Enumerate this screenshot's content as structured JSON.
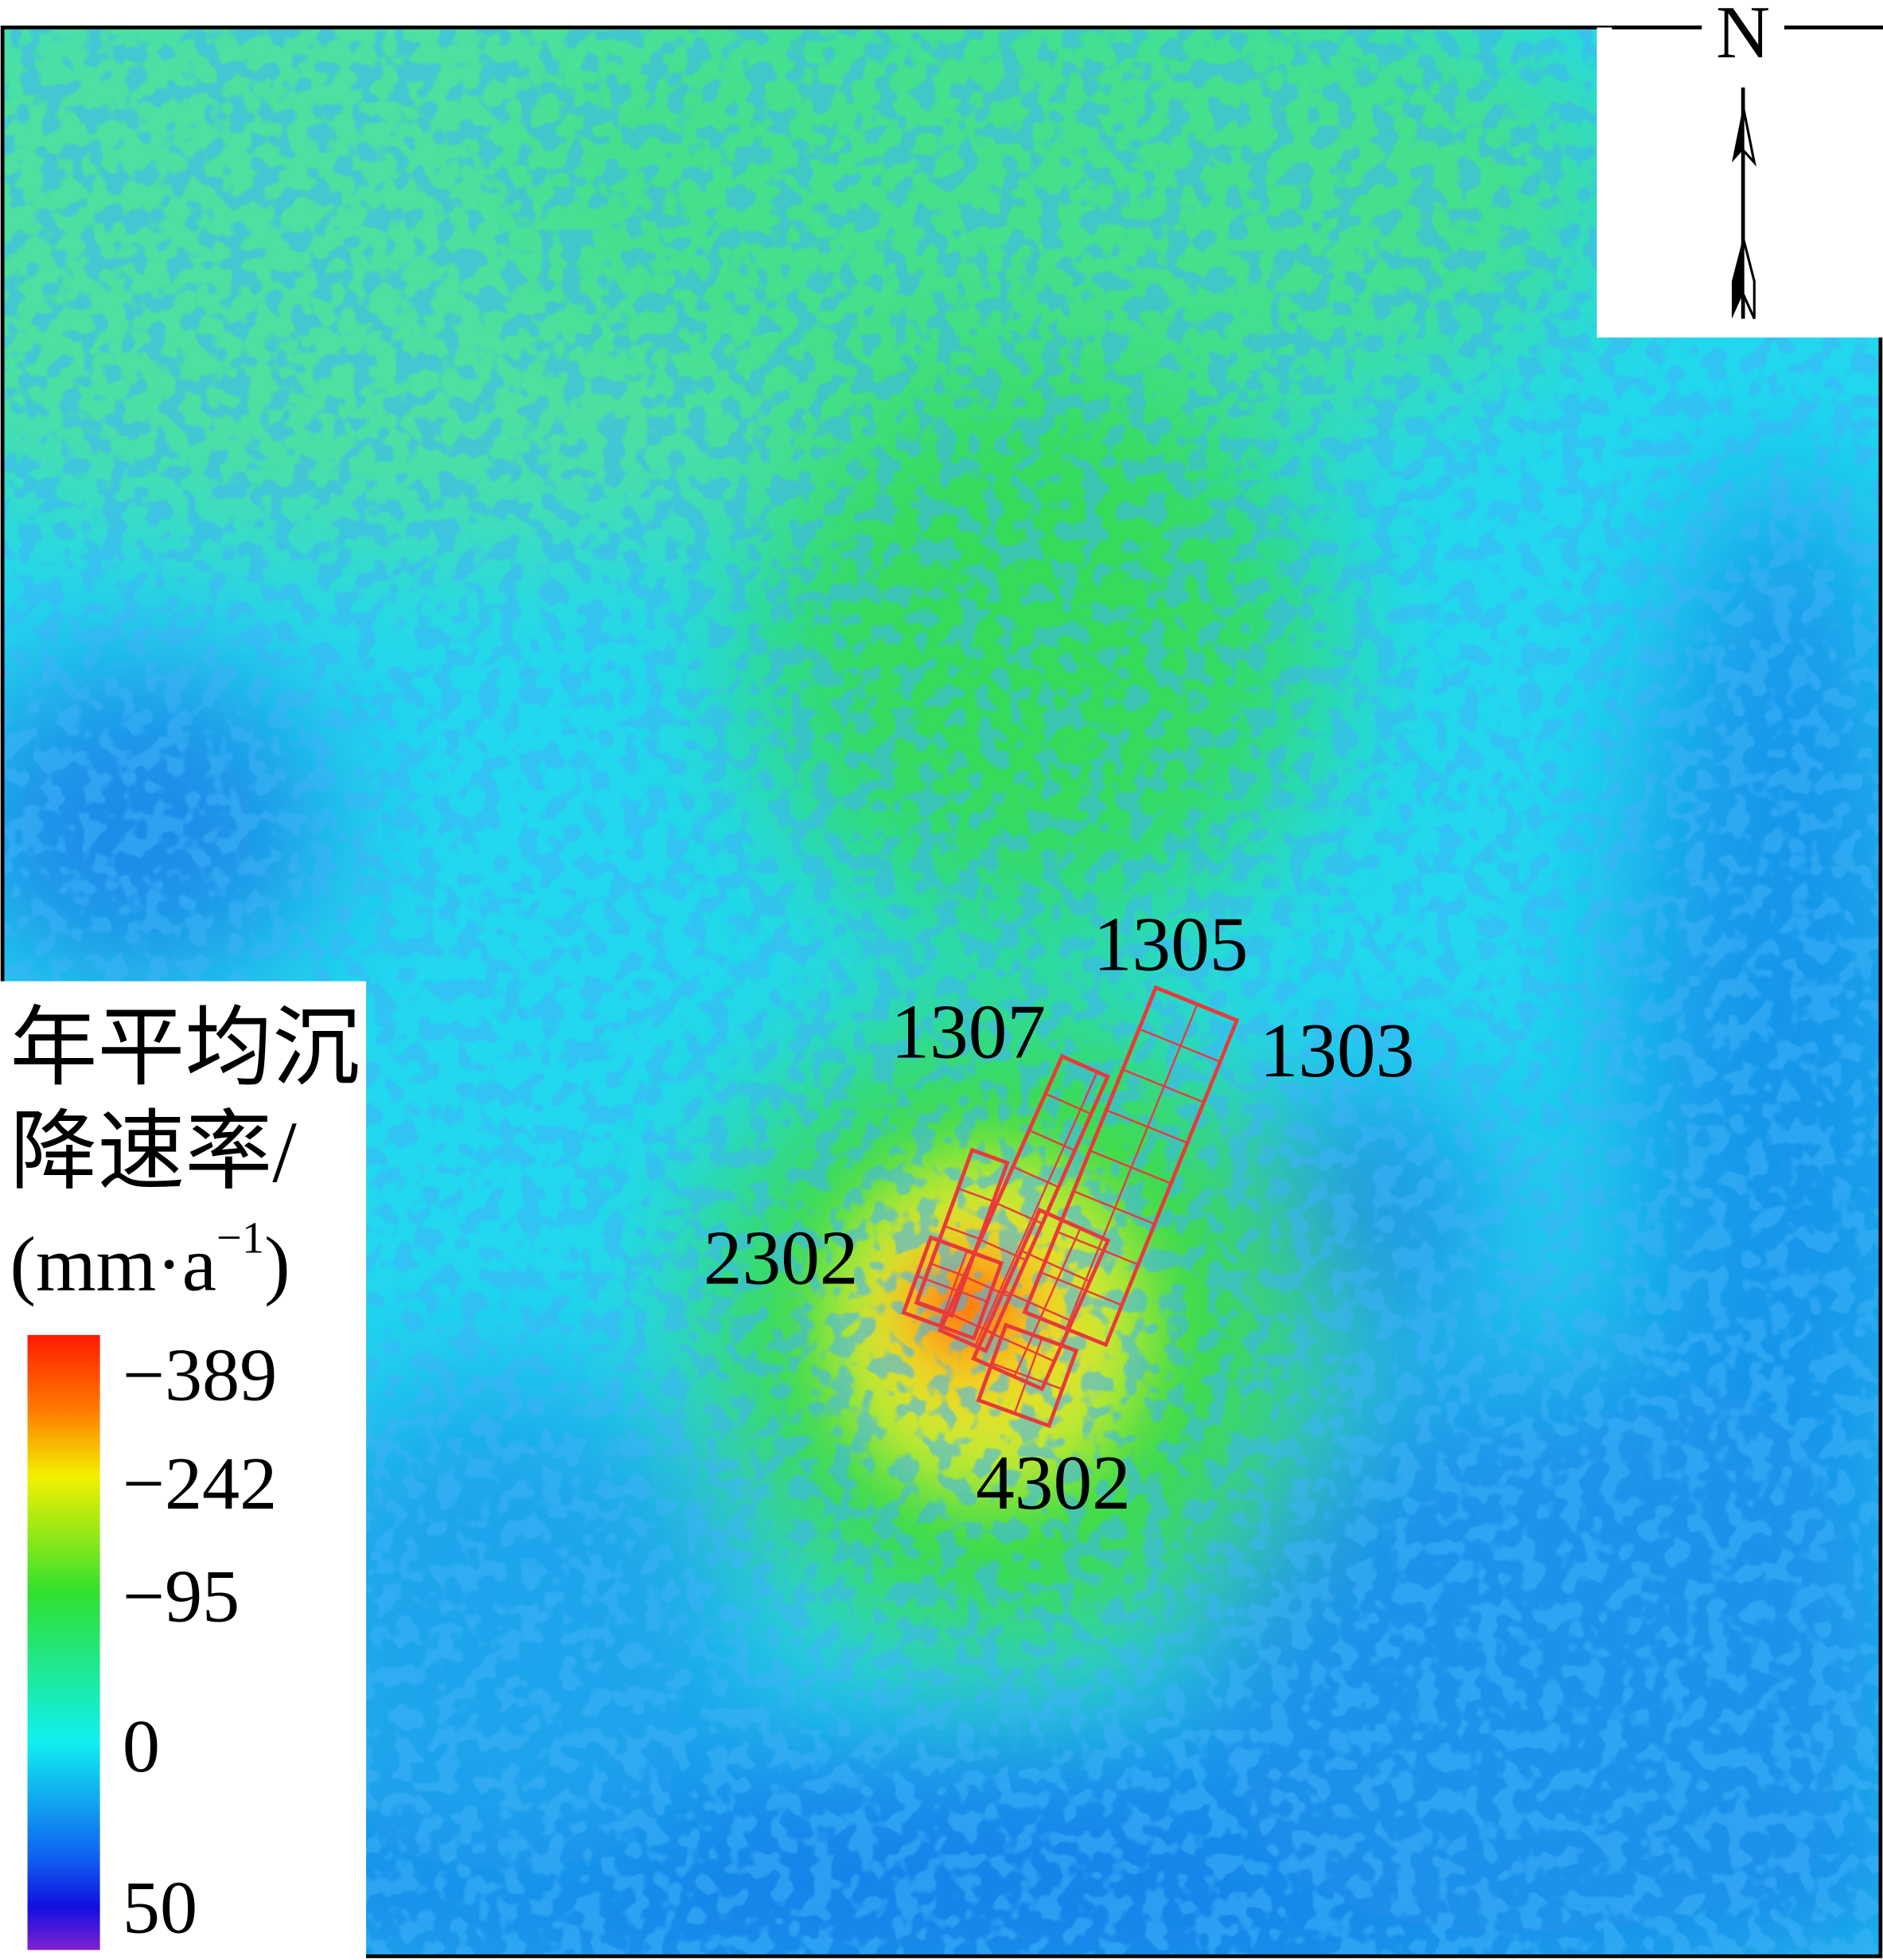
{
  "map": {
    "north_label": "N",
    "legend": {
      "title_lines": [
        "年平均沉",
        "降速率/"
      ],
      "unit": "(mm·a",
      "unit_exponent": "−1",
      "unit_close": ")",
      "ticks": [
        "−389",
        "−242",
        "−95",
        "0",
        "50"
      ]
    },
    "panel_labels": [
      "1305",
      "1307",
      "1303",
      "2302",
      "4302"
    ]
  }
}
